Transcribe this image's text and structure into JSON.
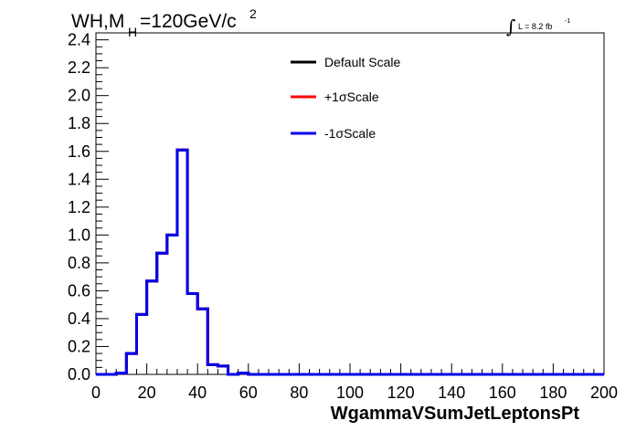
{
  "chart_data": {
    "type": "line",
    "title_main": "WH,M",
    "title_sub": "H",
    "title_rest": "=120GeV/c",
    "title_sup": "2",
    "lumi_integral": "∫",
    "lumi_text": "L = 8.2 fb",
    "lumi_sup": "-1",
    "xlabel": "WgammaVSumJetLeptonsPt",
    "ylabel": "",
    "xlim": [
      0,
      200
    ],
    "ylim": [
      0,
      2.45
    ],
    "x_ticks": [
      "0",
      "20",
      "40",
      "60",
      "80",
      "100",
      "120",
      "140",
      "160",
      "180",
      "200"
    ],
    "y_ticks": [
      "0.0",
      "0.2",
      "0.4",
      "0.6",
      "0.8",
      "1.0",
      "1.2",
      "1.4",
      "1.6",
      "1.8",
      "2.0",
      "2.2",
      "2.4"
    ],
    "legend_position": "top-center",
    "bin_width": 4,
    "bin_edges_start": 0,
    "series": [
      {
        "name": "Default Scale",
        "color": "#000000",
        "values": [
          0,
          0,
          0.01,
          0.15,
          0.43,
          0.67,
          0.87,
          1.0,
          1.61,
          0.58,
          0.47,
          0.07,
          0.06,
          0,
          0.01,
          0,
          0,
          0,
          0,
          0,
          0,
          0,
          0,
          0,
          0,
          0,
          0,
          0,
          0,
          0,
          0,
          0,
          0,
          0,
          0,
          0,
          0,
          0,
          0,
          0,
          0,
          0,
          0,
          0,
          0,
          0,
          0,
          0,
          0,
          0
        ]
      },
      {
        "name": "+1σScale",
        "color": "#ff0000",
        "values": [
          0,
          0,
          0.01,
          0.15,
          0.43,
          0.67,
          0.87,
          1.0,
          1.61,
          0.58,
          0.47,
          0.07,
          0.06,
          0,
          0.01,
          0,
          0,
          0,
          0,
          0,
          0,
          0,
          0,
          0,
          0,
          0,
          0,
          0,
          0,
          0,
          0,
          0,
          0,
          0,
          0,
          0,
          0,
          0,
          0,
          0,
          0,
          0,
          0,
          0,
          0,
          0,
          0,
          0,
          0,
          0
        ]
      },
      {
        "name": "-1σScale",
        "color": "#0000ee",
        "values": [
          0,
          0,
          0.01,
          0.15,
          0.43,
          0.67,
          0.87,
          1.0,
          1.61,
          0.58,
          0.47,
          0.07,
          0.06,
          0,
          0.01,
          0,
          0,
          0,
          0,
          0,
          0,
          0,
          0,
          0,
          0,
          0,
          0,
          0,
          0,
          0,
          0,
          0,
          0,
          0,
          0,
          0,
          0,
          0,
          0,
          0,
          0,
          0,
          0,
          0,
          0,
          0,
          0,
          0,
          0,
          0
        ]
      }
    ]
  }
}
